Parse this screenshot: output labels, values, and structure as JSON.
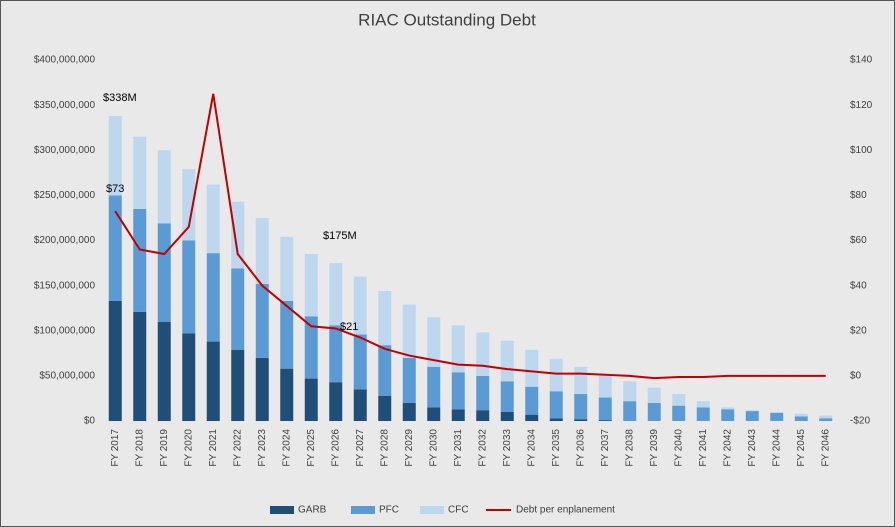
{
  "chart_data": {
    "type": "bar",
    "title": "RIAC Outstanding Debt",
    "stacked": true,
    "categories": [
      "FY 2017",
      "FY 2018",
      "FY 2019",
      "FY 2020",
      "FY 2021",
      "FY 2022",
      "FY 2023",
      "FY 2024",
      "FY 2025",
      "FY 2026",
      "FY 2027",
      "FY 2028",
      "FY 2029",
      "FY 2030",
      "FY 2031",
      "FY 2032",
      "FY 2033",
      "FY 2034",
      "FY 2035",
      "FY 2036",
      "FY 2037",
      "FY 2038",
      "FY 2039",
      "FY 2040",
      "FY 2041",
      "FY 2042",
      "FY 2043",
      "FY 2044",
      "FY 2045",
      "FY 2046"
    ],
    "series": [
      {
        "name": "GARB",
        "color": "#1f4e79",
        "values": [
          133000000,
          121000000,
          110000000,
          97000000,
          88000000,
          79000000,
          70000000,
          58000000,
          47000000,
          43000000,
          35000000,
          28000000,
          20000000,
          15000000,
          13000000,
          12000000,
          10000000,
          7000000,
          3000000,
          2000000,
          1000000,
          0,
          0,
          0,
          0,
          0,
          0,
          0,
          0,
          0
        ]
      },
      {
        "name": "PFC",
        "color": "#5b9bd5",
        "values": [
          117000000,
          114000000,
          109000000,
          103000000,
          98000000,
          90000000,
          82000000,
          75000000,
          69000000,
          63000000,
          61000000,
          56000000,
          50000000,
          45000000,
          41000000,
          38000000,
          34000000,
          31000000,
          30000000,
          28000000,
          25000000,
          22000000,
          20000000,
          17000000,
          15000000,
          13000000,
          11000000,
          9000000,
          5000000,
          3000000
        ]
      },
      {
        "name": "CFC",
        "color": "#bdd7ee",
        "values": [
          88000000,
          80000000,
          81000000,
          79000000,
          76000000,
          74000000,
          73000000,
          71000000,
          69000000,
          69000000,
          64000000,
          60000000,
          59000000,
          55000000,
          52000000,
          48000000,
          45000000,
          41000000,
          36000000,
          30000000,
          24000000,
          22000000,
          17000000,
          13000000,
          7000000,
          2000000,
          1000000,
          1000000,
          3000000,
          3000000
        ]
      },
      {
        "name": "Debt per enplanement",
        "type": "line",
        "axis": "y2",
        "color": "#c00000",
        "values": [
          73,
          56,
          54,
          66,
          125,
          54,
          40,
          31,
          22,
          21,
          17,
          12,
          9,
          7,
          5,
          4.5,
          3,
          2,
          1,
          1,
          0.5,
          0,
          -1,
          -0.5,
          -0.5,
          0,
          0,
          0,
          0,
          0
        ]
      }
    ],
    "annotations": [
      "$338M",
      "$73",
      "$175M",
      "$21"
    ],
    "ylim": [
      0,
      400000000
    ],
    "yticks": [
      {
        "value": 0,
        "label": "$0"
      },
      {
        "value": 50000000,
        "label": "$50,000,000"
      },
      {
        "value": 100000000,
        "label": "$100,000,000"
      },
      {
        "value": 150000000,
        "label": "$150,000,000"
      },
      {
        "value": 200000000,
        "label": "$200,000,000"
      },
      {
        "value": 250000000,
        "label": "$250,000,000"
      },
      {
        "value": 300000000,
        "label": "$300,000,000"
      },
      {
        "value": 350000000,
        "label": "$350,000,000"
      },
      {
        "value": 400000000,
        "label": "$400,000,000"
      }
    ],
    "y2lim": [
      -20,
      140
    ],
    "y2ticks": [
      {
        "value": -20,
        "label": "-$20"
      },
      {
        "value": 0,
        "label": "$0"
      },
      {
        "value": 20,
        "label": "$20"
      },
      {
        "value": 40,
        "label": "$40"
      },
      {
        "value": 60,
        "label": "$60"
      },
      {
        "value": 80,
        "label": "$80"
      },
      {
        "value": 100,
        "label": "$100"
      },
      {
        "value": 120,
        "label": "$120"
      },
      {
        "value": 140,
        "label": "$140"
      }
    ],
    "legend": "bottom"
  }
}
